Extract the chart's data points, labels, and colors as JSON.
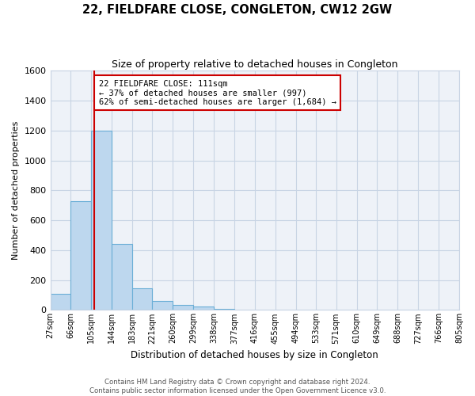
{
  "title": "22, FIELDFARE CLOSE, CONGLETON, CW12 2GW",
  "subtitle": "Size of property relative to detached houses in Congleton",
  "xlabel": "Distribution of detached houses by size in Congleton",
  "ylabel": "Number of detached properties",
  "bin_edges": [
    27,
    66,
    105,
    144,
    183,
    221,
    260,
    299,
    338,
    377,
    416,
    455,
    494,
    533,
    571,
    610,
    649,
    688,
    727,
    766,
    805
  ],
  "bin_labels": [
    "27sqm",
    "66sqm",
    "105sqm",
    "144sqm",
    "183sqm",
    "221sqm",
    "260sqm",
    "299sqm",
    "338sqm",
    "377sqm",
    "416sqm",
    "455sqm",
    "494sqm",
    "533sqm",
    "571sqm",
    "610sqm",
    "649sqm",
    "688sqm",
    "727sqm",
    "766sqm",
    "805sqm"
  ],
  "counts": [
    110,
    730,
    1200,
    440,
    145,
    60,
    35,
    25,
    5,
    0,
    0,
    0,
    0,
    0,
    0,
    0,
    0,
    0,
    0,
    0
  ],
  "bar_color": "#bdd7ee",
  "bar_edge_color": "#6aaed6",
  "property_size": 111,
  "vline_x": 111,
  "vline_color": "#cc0000",
  "annotation_title": "22 FIELDFARE CLOSE: 111sqm",
  "annotation_line1": "← 37% of detached houses are smaller (997)",
  "annotation_line2": "62% of semi-detached houses are larger (1,684) →",
  "annotation_box_color": "#ffffff",
  "annotation_box_edge": "#cc0000",
  "ylim": [
    0,
    1600
  ],
  "yticks": [
    0,
    200,
    400,
    600,
    800,
    1000,
    1200,
    1400,
    1600
  ],
  "footer_line1": "Contains HM Land Registry data © Crown copyright and database right 2024.",
  "footer_line2": "Contains public sector information licensed under the Open Government Licence v3.0.",
  "background_color": "#ffffff",
  "grid_color": "#c8d4e4",
  "plot_bg_color": "#eef2f8"
}
